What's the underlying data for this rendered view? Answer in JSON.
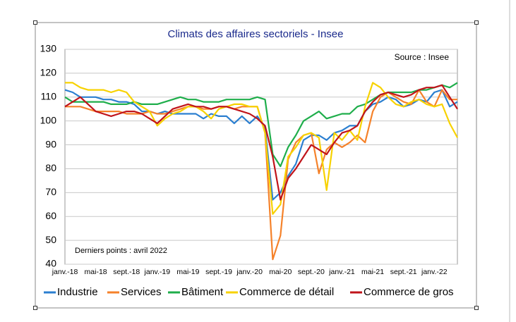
{
  "chart_data": {
    "type": "line",
    "title": "Climats des affaires sectoriels - Insee",
    "annotations": [
      "Source : Insee",
      "Derniers points : avril 2022"
    ],
    "categories": [
      "janv.-18",
      null,
      null,
      null,
      "mai-18",
      null,
      null,
      null,
      "sept.-18",
      null,
      null,
      null,
      "janv.-19",
      null,
      null,
      null,
      "mai-19",
      null,
      null,
      null,
      "sept.-19",
      null,
      null,
      null,
      "janv.-20",
      null,
      null,
      null,
      "mai-20",
      null,
      null,
      null,
      "sept.-20",
      null,
      null,
      null,
      "janv.-21",
      null,
      null,
      null,
      "mai-21",
      null,
      null,
      null,
      "sept.-21",
      null,
      null,
      null,
      "janv.-22",
      null,
      null,
      null
    ],
    "series": [
      {
        "name": "Industrie",
        "color": "#2b7fd0",
        "values": [
          113,
          112,
          110,
          110,
          110,
          109,
          109,
          108,
          108,
          107,
          104,
          104,
          103,
          104,
          103,
          103,
          103,
          103,
          101,
          103,
          102,
          102,
          99,
          102,
          99,
          102,
          97,
          67,
          70,
          77,
          82,
          92,
          94,
          94,
          92,
          95,
          96,
          98,
          98,
          104,
          107,
          108,
          110,
          109,
          106,
          107,
          109,
          108,
          112,
          113,
          106,
          108
        ]
      },
      {
        "name": "Services",
        "color": "#f5822a",
        "values": [
          106,
          106,
          106,
          105,
          104,
          104,
          104,
          104,
          103,
          103,
          103,
          104,
          103,
          103,
          104,
          105,
          106,
          106,
          105,
          105,
          106,
          106,
          105,
          106,
          106,
          106,
          95,
          42,
          52,
          84,
          91,
          94,
          95,
          78,
          88,
          91,
          89,
          91,
          94,
          91,
          104,
          110,
          112,
          110,
          108,
          107,
          113,
          108,
          106,
          113,
          109,
          109
        ]
      },
      {
        "name": "Bâtiment",
        "color": "#1fae4b",
        "values": [
          110,
          108,
          108,
          108,
          108,
          108,
          107,
          107,
          107,
          108,
          107,
          107,
          107,
          108,
          109,
          110,
          109,
          109,
          108,
          108,
          108,
          109,
          109,
          109,
          109,
          110,
          109,
          86,
          81,
          89,
          94,
          100,
          102,
          104,
          101,
          102,
          103,
          103,
          106,
          107,
          109,
          111,
          112,
          112,
          112,
          112,
          113,
          113,
          114,
          115,
          114,
          116
        ]
      },
      {
        "name": "Commerce de détail",
        "color": "#f7d200",
        "values": [
          116,
          116,
          114,
          113,
          113,
          113,
          112,
          113,
          112,
          108,
          106,
          104,
          98,
          101,
          103,
          104,
          106,
          106,
          104,
          101,
          105,
          106,
          107,
          107,
          106,
          106,
          95,
          61,
          65,
          85,
          89,
          94,
          95,
          93,
          71,
          95,
          92,
          96,
          92,
          106,
          116,
          114,
          110,
          107,
          106,
          108,
          109,
          107,
          106,
          107,
          99,
          93
        ]
      },
      {
        "name": "Commerce de gros",
        "color": "#c0141b",
        "values": [
          106,
          108,
          110,
          107,
          104,
          103,
          102,
          103,
          104,
          104,
          103,
          101,
          99,
          102,
          105,
          106,
          107,
          106,
          106,
          105,
          106,
          106,
          105,
          104,
          103,
          101,
          98,
          85,
          67,
          76,
          80,
          85,
          90,
          88,
          86,
          91,
          95,
          96,
          98,
          104,
          108,
          111,
          112,
          111,
          110,
          111,
          113,
          114,
          114,
          115,
          110,
          105
        ]
      }
    ],
    "ylim": [
      40,
      130
    ],
    "yticks": [
      40,
      50,
      60,
      70,
      80,
      90,
      100,
      110,
      120,
      130
    ],
    "grid": true,
    "legend": "bottom"
  }
}
